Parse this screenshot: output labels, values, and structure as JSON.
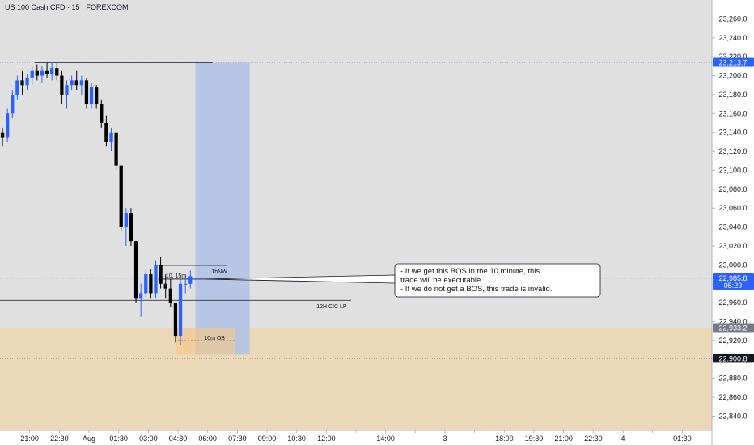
{
  "header": {
    "title": "US 100 Cash CFD · 15 · FOREXCOM"
  },
  "colors": {
    "plot_bg": "#e0e0e0",
    "zone_fill": "#ead8b8",
    "ob_fill": "#f5c98c",
    "target_fill": "#b3c3e6",
    "candle_up": "#2962ff",
    "candle_down": "#000000",
    "price_tag": "#2962ff",
    "dark_tag": "#131722",
    "text": "#131722"
  },
  "chart_data": {
    "type": "candlestick",
    "title": "US 100 Cash CFD · 15 · FOREXCOM",
    "ylim": [
      22825,
      23280
    ],
    "y_ticks": [
      23260,
      23240,
      23220,
      23200,
      23180,
      23160,
      23140,
      23120,
      23100,
      23080,
      23060,
      23040,
      23020,
      23000,
      22980,
      22960,
      22940,
      22920,
      22900,
      22880,
      22860,
      22840
    ],
    "y_tick_labels": [
      "23,260.0",
      "23,240.0",
      "23,220.0",
      "23,200.0",
      "23,180.0",
      "23,160.0",
      "23,140.0",
      "23,120.0",
      "23,100.0",
      "23,080.0",
      "23,060.0",
      "23,040.0",
      "23,020.0",
      "23,000.0",
      "22,980.0",
      "22,960.0",
      "22,940.0",
      "22,920.0",
      "22,900.0",
      "22,880.0",
      "22,860.0",
      "22,840.0"
    ],
    "bar_range": [
      0,
      144
    ],
    "x_ticks": [
      {
        "bar": 6,
        "label": "21:00"
      },
      {
        "bar": 12,
        "label": "22:30"
      },
      {
        "bar": 18,
        "label": "Aug"
      },
      {
        "bar": 24,
        "label": "01:30"
      },
      {
        "bar": 30,
        "label": "03:00"
      },
      {
        "bar": 36,
        "label": "04:30"
      },
      {
        "bar": 42,
        "label": "06:00"
      },
      {
        "bar": 48,
        "label": "07:30"
      },
      {
        "bar": 54,
        "label": "09:00"
      },
      {
        "bar": 60,
        "label": "10:30"
      },
      {
        "bar": 66,
        "label": "12:00"
      },
      {
        "bar": 72,
        "label": ""
      },
      {
        "bar": 78,
        "label": "14:00"
      },
      {
        "bar": 84,
        "label": ""
      },
      {
        "bar": 90,
        "label": "3"
      },
      {
        "bar": 96,
        "label": ""
      },
      {
        "bar": 102,
        "label": "18:00"
      },
      {
        "bar": 108,
        "label": "19:30"
      },
      {
        "bar": 114,
        "label": "21:00"
      },
      {
        "bar": 120,
        "label": "22:30"
      },
      {
        "bar": 126,
        "label": "4"
      },
      {
        "bar": 132,
        "label": ""
      },
      {
        "bar": 138,
        "label": "01:30"
      }
    ],
    "candles": [
      [
        23140,
        23145,
        23125,
        23135
      ],
      [
        23135,
        23165,
        23130,
        23160
      ],
      [
        23160,
        23185,
        23155,
        23180
      ],
      [
        23180,
        23200,
        23175,
        23195
      ],
      [
        23195,
        23205,
        23180,
        23190
      ],
      [
        23190,
        23202,
        23185,
        23198
      ],
      [
        23198,
        23210,
        23190,
        23205
      ],
      [
        23205,
        23212,
        23195,
        23200
      ],
      [
        23200,
        23210,
        23192,
        23205
      ],
      [
        23205,
        23214,
        23198,
        23202
      ],
      [
        23202,
        23214,
        23195,
        23208
      ],
      [
        23208,
        23213,
        23195,
        23200
      ],
      [
        23200,
        23205,
        23170,
        23180
      ],
      [
        23180,
        23195,
        23165,
        23190
      ],
      [
        23190,
        23200,
        23185,
        23195
      ],
      [
        23195,
        23205,
        23185,
        23190
      ],
      [
        23190,
        23200,
        23180,
        23195
      ],
      [
        23195,
        23198,
        23165,
        23170
      ],
      [
        23170,
        23192,
        23165,
        23188
      ],
      [
        23188,
        23190,
        23165,
        23170
      ],
      [
        23170,
        23175,
        23145,
        23150
      ],
      [
        23150,
        23158,
        23125,
        23130
      ],
      [
        23130,
        23145,
        23120,
        23140
      ],
      [
        23140,
        23140,
        23100,
        23105
      ],
      [
        23105,
        23105,
        23035,
        23040
      ],
      [
        23040,
        23060,
        23020,
        23055
      ],
      [
        23055,
        23060,
        23020,
        23025
      ],
      [
        23025,
        23025,
        22960,
        22965
      ],
      [
        22965,
        22980,
        22945,
        22970
      ],
      [
        22970,
        22995,
        22965,
        22990
      ],
      [
        22990,
        22995,
        22965,
        22970
      ],
      [
        22970,
        23005,
        22965,
        23000
      ],
      [
        23000,
        23008,
        22975,
        22980
      ],
      [
        22980,
        22990,
        22965,
        22975
      ],
      [
        22975,
        22985,
        22955,
        22960
      ],
      [
        22960,
        22960,
        22918,
        22925
      ],
      [
        22925,
        22985,
        22915,
        22980
      ],
      [
        22980,
        22990,
        22970,
        22980
      ],
      [
        22980,
        22994,
        22975,
        22988
      ]
    ],
    "target_box": {
      "x0": 39.5,
      "x1": 50.5,
      "y0": 22905,
      "y1": 23213.7
    },
    "ob_box": {
      "x0": 35.5,
      "x1": 47.5,
      "y0": 22905,
      "y1": 22933
    },
    "zone": {
      "y0": 22825,
      "y1": 22933
    },
    "lines": [
      {
        "name": "top-line",
        "x0": 7,
        "x1": 43,
        "y": 23213.7,
        "label": ""
      },
      {
        "name": "1hnw-line",
        "x0": 32,
        "x1": 46,
        "y": 22999.5,
        "label": "1hNW"
      },
      {
        "name": "bos-line",
        "x0": 32,
        "x1": 43,
        "y": 22985,
        "label": "5, 10, 15m"
      },
      {
        "name": "12h-cic-lp-line",
        "x0": 0,
        "x1": 71,
        "y": 22962.5,
        "label": "12H CIC LP"
      },
      {
        "name": "ob-mid-line",
        "x0": 36,
        "x1": 47.5,
        "y": 22920,
        "label": "10m OB"
      }
    ],
    "annotation": [
      "- If we get this BOS in the 10 minute, this",
      "trade will be executable.",
      "- If we do not get a BOS, this trade is invalid."
    ],
    "price_tags": [
      {
        "value": 23213.7,
        "label": "23,213.7",
        "time": "",
        "style": "blue"
      },
      {
        "value": 22985.8,
        "label": "22,985.8",
        "time": "05:29",
        "style": "blue"
      },
      {
        "value": 22933.2,
        "label": "22,933.2",
        "time": "",
        "style": "gray"
      },
      {
        "value": 22900.8,
        "label": "22,900.8",
        "time": "",
        "style": "dark"
      }
    ]
  }
}
